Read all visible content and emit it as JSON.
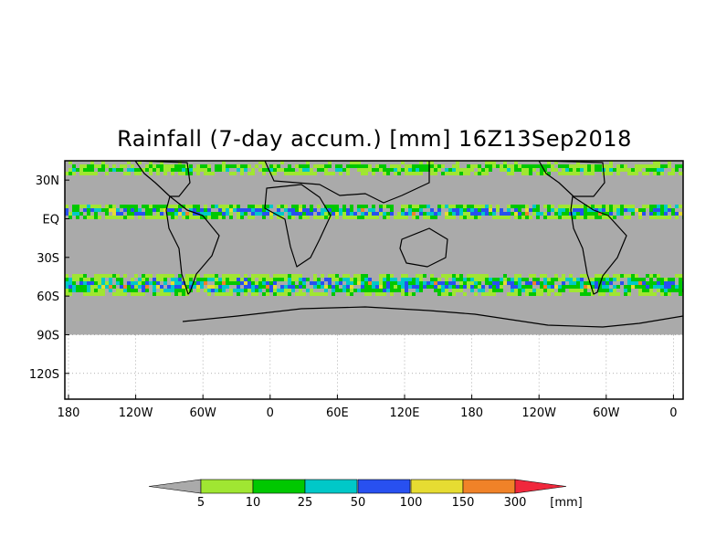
{
  "title": "Rainfall (7-day accum.) [mm] 16Z13Sep2018",
  "map": {
    "lon_ticks": [
      "180",
      "120W",
      "60W",
      "0",
      "60E",
      "120E",
      "180",
      "120W",
      "60W",
      "0"
    ],
    "lat_ticks": [
      "30N",
      "EQ",
      "30S",
      "60S",
      "90S",
      "120S"
    ],
    "lon_range": [
      180,
      0
    ],
    "lat_range": [
      -140,
      45
    ],
    "data_extent_lat": [
      -90,
      45
    ],
    "grid": true,
    "no_data_color": "#aaaaaa",
    "background_color": "#ffffff"
  },
  "legend": {
    "thresholds": [
      "5",
      "10",
      "25",
      "50",
      "100",
      "150",
      "300"
    ],
    "unit": "[mm]",
    "colors": [
      "#aaaaaa",
      "#a0e632",
      "#00c800",
      "#00c8c8",
      "#2850f0",
      "#e6dc32",
      "#f08228",
      "#f0283c"
    ]
  }
}
